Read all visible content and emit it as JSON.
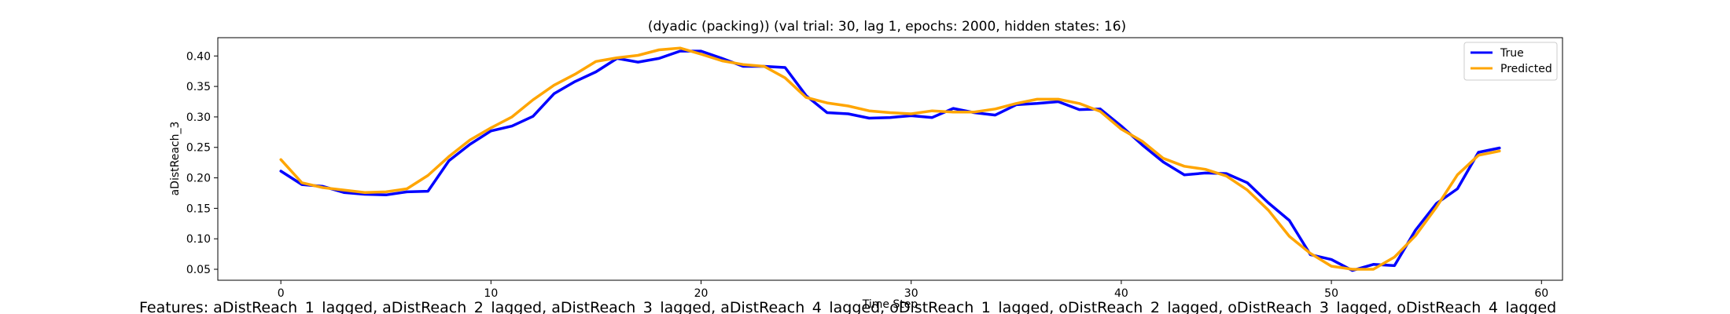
{
  "chart_data": {
    "type": "line",
    "title": "(dyadic (packing)) (val trial: 30, lag 1, epochs: 2000, hidden states: 16)",
    "xlabel": "Time Step",
    "ylabel": "aDistReach_3",
    "xlim": [
      -3,
      61
    ],
    "ylim": [
      0.032,
      0.43
    ],
    "xticks": [
      0,
      10,
      20,
      30,
      40,
      50,
      60
    ],
    "yticks": [
      0.05,
      0.1,
      0.15,
      0.2,
      0.25,
      0.3,
      0.35,
      0.4
    ],
    "ytick_labels": [
      "0.05",
      "0.10",
      "0.15",
      "0.20",
      "0.25",
      "0.30",
      "0.35",
      "0.40"
    ],
    "legend_position": "top-right",
    "grid": false,
    "series": [
      {
        "name": "True",
        "color": "#0000ff",
        "values": [
          0.211,
          0.189,
          0.186,
          0.176,
          0.173,
          0.172,
          0.177,
          0.178,
          0.228,
          0.255,
          0.277,
          0.285,
          0.301,
          0.338,
          0.358,
          0.374,
          0.396,
          0.39,
          0.396,
          0.408,
          0.408,
          0.396,
          0.383,
          0.383,
          0.381,
          0.335,
          0.307,
          0.305,
          0.298,
          0.299,
          0.302,
          0.299,
          0.314,
          0.307,
          0.303,
          0.32,
          0.322,
          0.325,
          0.312,
          0.313,
          0.285,
          0.254,
          0.226,
          0.205,
          0.208,
          0.207,
          0.192,
          0.159,
          0.13,
          0.074,
          0.066,
          0.048,
          0.058,
          0.056,
          0.114,
          0.158,
          0.182,
          0.242,
          0.249
        ]
      },
      {
        "name": "Predicted",
        "color": "#ffa500",
        "values": [
          0.23,
          0.192,
          0.184,
          0.18,
          0.176,
          0.177,
          0.182,
          0.204,
          0.235,
          0.262,
          0.282,
          0.3,
          0.328,
          0.352,
          0.37,
          0.391,
          0.397,
          0.401,
          0.41,
          0.413,
          0.403,
          0.392,
          0.386,
          0.383,
          0.364,
          0.332,
          0.323,
          0.318,
          0.31,
          0.307,
          0.305,
          0.31,
          0.308,
          0.308,
          0.313,
          0.322,
          0.329,
          0.329,
          0.322,
          0.309,
          0.28,
          0.26,
          0.232,
          0.219,
          0.214,
          0.203,
          0.18,
          0.147,
          0.104,
          0.076,
          0.055,
          0.05,
          0.05,
          0.07,
          0.105,
          0.152,
          0.205,
          0.237,
          0.244
        ]
      }
    ]
  },
  "features_text": "Features: aDistReach_1_lagged, aDistReach_2_lagged, aDistReach_3_lagged, aDistReach_4_lagged, oDistReach_1_lagged, oDistReach_2_lagged, oDistReach_3_lagged, oDistReach_4_lagged"
}
